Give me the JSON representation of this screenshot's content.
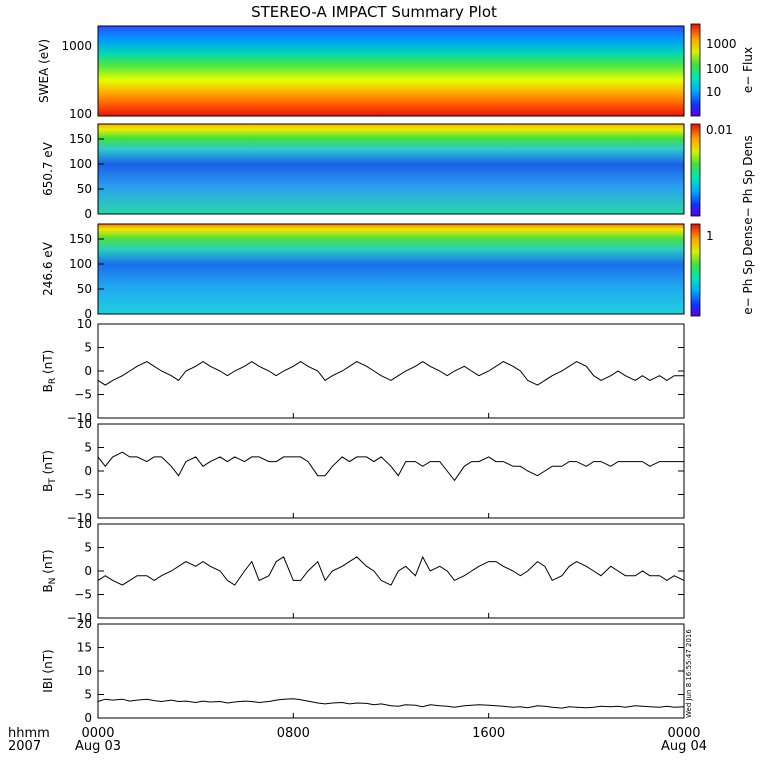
{
  "title": "STEREO-A IMPACT Summary Plot",
  "timestamp_label": "Wed Jun  8 16:55:47 2016",
  "time_axis": {
    "label_line1": "hhmm",
    "label_line2": "2007",
    "ticks": [
      {
        "hour": 0,
        "top": "0000",
        "bottom": "Aug 03"
      },
      {
        "hour": 8,
        "top": "0800",
        "bottom": ""
      },
      {
        "hour": 16,
        "top": "1600",
        "bottom": ""
      },
      {
        "hour": 24,
        "top": "0000",
        "bottom": "Aug 04"
      }
    ]
  },
  "chart_data": [
    {
      "type": "heatmap",
      "id": "swea",
      "ylabel": "SWEA (eV)",
      "yscale": "log",
      "ylim": [
        100,
        2000
      ],
      "yticks": [
        "100",
        "1000"
      ],
      "colorbar_label": "e− Flux",
      "colorbar_scale": "log",
      "colorbar_ticks": [
        "10",
        "100",
        "1000"
      ],
      "description_values": "energy-flux spectrogram: high flux (red) at low energy ~100-200 eV, decreasing to blue near 2000 eV, nearly constant over time"
    },
    {
      "type": "heatmap",
      "id": "pad_650",
      "ylabel": "650.7 eV",
      "ylim": [
        0,
        180
      ],
      "yticks": [
        "0",
        "50",
        "100",
        "150"
      ],
      "colorbar_label": "e− Ph Sp Dens",
      "colorbar_ticks": [
        "0.01"
      ],
      "description_values": "pitch-angle distribution: strahl (yellow/red) near 180 deg, depletion (blue) near 90-120 deg during 0000-0900"
    },
    {
      "type": "heatmap",
      "id": "pad_246",
      "ylabel": "246.6 eV",
      "ylim": [
        0,
        180
      ],
      "yticks": [
        "0",
        "50",
        "100",
        "150"
      ],
      "colorbar_label": "e− Ph Sp Dens",
      "colorbar_ticks": [
        "1"
      ],
      "description_values": "pitch-angle distribution: strahl near 180 deg, depletion near 90 deg during 0000-0900 and ~2000-2100"
    },
    {
      "type": "line",
      "id": "br",
      "ylabel": "B",
      "ylabel_sub": "R",
      "ylabel_unit": "(nT)",
      "ylim": [
        -10,
        10
      ],
      "yticks": [
        "−10",
        "−5",
        "0",
        "5",
        "10"
      ],
      "x_hours": [
        0,
        0.3,
        0.6,
        1,
        1.3,
        1.6,
        2,
        2.3,
        2.6,
        3,
        3.3,
        3.6,
        4,
        4.3,
        4.6,
        5,
        5.3,
        5.6,
        6,
        6.3,
        6.6,
        7,
        7.3,
        7.6,
        8,
        8.3,
        8.6,
        9,
        9.3,
        9.6,
        10,
        10.3,
        10.6,
        11,
        11.3,
        11.6,
        12,
        12.3,
        12.6,
        13,
        13.3,
        13.6,
        14,
        14.3,
        14.6,
        15,
        15.3,
        15.6,
        16,
        16.3,
        16.6,
        17,
        17.3,
        17.6,
        18,
        18.3,
        18.6,
        19,
        19.3,
        19.6,
        20,
        20.3,
        20.6,
        21,
        21.3,
        21.6,
        22,
        22.3,
        22.6,
        23,
        23.3,
        23.6,
        24
      ],
      "y": [
        -2,
        -3,
        -2,
        -1,
        0,
        1,
        2,
        1,
        0,
        -1,
        -2,
        0,
        1,
        2,
        1,
        0,
        -1,
        0,
        1,
        2,
        1,
        0,
        -1,
        0,
        1,
        2,
        1,
        0,
        -2,
        -1,
        0,
        1,
        2,
        1,
        0,
        -1,
        -2,
        -1,
        0,
        1,
        2,
        1,
        0,
        -1,
        0,
        1,
        0,
        -1,
        0,
        1,
        2,
        1,
        0,
        -2,
        -3,
        -2,
        -1,
        0,
        1,
        2,
        1,
        -1,
        -2,
        -1,
        0,
        -1,
        -2,
        -1,
        -2,
        -1,
        -2,
        -1,
        -1
      ]
    },
    {
      "type": "line",
      "id": "bt",
      "ylabel": "B",
      "ylabel_sub": "T",
      "ylabel_unit": "(nT)",
      "ylim": [
        -10,
        10
      ],
      "yticks": [
        "−10",
        "−5",
        "0",
        "5",
        "10"
      ],
      "x_hours": [
        0,
        0.3,
        0.6,
        1,
        1.3,
        1.6,
        2,
        2.3,
        2.6,
        3,
        3.3,
        3.6,
        4,
        4.3,
        4.6,
        5,
        5.3,
        5.6,
        6,
        6.3,
        6.6,
        7,
        7.3,
        7.6,
        8,
        8.3,
        8.6,
        9,
        9.3,
        9.6,
        10,
        10.3,
        10.6,
        11,
        11.3,
        11.6,
        12,
        12.3,
        12.6,
        13,
        13.3,
        13.6,
        14,
        14.3,
        14.6,
        15,
        15.3,
        15.6,
        16,
        16.3,
        16.6,
        17,
        17.3,
        17.6,
        18,
        18.3,
        18.6,
        19,
        19.3,
        19.6,
        20,
        20.3,
        20.6,
        21,
        21.3,
        21.6,
        22,
        22.3,
        22.6,
        23,
        23.3,
        23.6,
        24
      ],
      "y": [
        3,
        1,
        3,
        4,
        3,
        3,
        2,
        3,
        3,
        1,
        -1,
        2,
        3,
        1,
        2,
        3,
        2,
        3,
        2,
        3,
        3,
        2,
        2,
        3,
        3,
        3,
        2,
        -1,
        -1,
        1,
        3,
        2,
        3,
        3,
        2,
        3,
        1,
        -1,
        2,
        2,
        1,
        2,
        2,
        0,
        -2,
        1,
        2,
        2,
        3,
        2,
        2,
        1,
        1,
        0,
        -1,
        0,
        1,
        1,
        2,
        2,
        1,
        2,
        2,
        1,
        2,
        2,
        2,
        2,
        1,
        2,
        2,
        2,
        2
      ]
    },
    {
      "type": "line",
      "id": "bn",
      "ylabel": "B",
      "ylabel_sub": "N",
      "ylabel_unit": "(nT)",
      "ylim": [
        -10,
        10
      ],
      "yticks": [
        "−10",
        "−5",
        "0",
        "5",
        "10"
      ],
      "x_hours": [
        0,
        0.3,
        0.6,
        1,
        1.3,
        1.6,
        2,
        2.3,
        2.6,
        3,
        3.3,
        3.6,
        4,
        4.3,
        4.6,
        5,
        5.3,
        5.6,
        6,
        6.3,
        6.6,
        7,
        7.3,
        7.6,
        8,
        8.3,
        8.6,
        9,
        9.3,
        9.6,
        10,
        10.3,
        10.6,
        11,
        11.3,
        11.6,
        12,
        12.3,
        12.6,
        13,
        13.3,
        13.6,
        14,
        14.3,
        14.6,
        15,
        15.3,
        15.6,
        16,
        16.3,
        16.6,
        17,
        17.3,
        17.6,
        18,
        18.3,
        18.6,
        19,
        19.3,
        19.6,
        20,
        20.3,
        20.6,
        21,
        21.3,
        21.6,
        22,
        22.3,
        22.6,
        23,
        23.3,
        23.6,
        24
      ],
      "y": [
        -2,
        -1,
        -2,
        -3,
        -2,
        -1,
        -1,
        -2,
        -1,
        0,
        1,
        2,
        1,
        2,
        1,
        0,
        -2,
        -3,
        0,
        2,
        -2,
        -1,
        2,
        3,
        -2,
        -2,
        0,
        2,
        -2,
        0,
        1,
        2,
        3,
        1,
        0,
        -2,
        -3,
        0,
        1,
        -1,
        3,
        0,
        1,
        0,
        -2,
        -1,
        0,
        1,
        2,
        2,
        1,
        0,
        -1,
        0,
        2,
        1,
        -2,
        -1,
        1,
        2,
        1,
        0,
        -1,
        1,
        0,
        -1,
        -1,
        0,
        -1,
        -1,
        -2,
        -1,
        -2
      ]
    },
    {
      "type": "line",
      "id": "bmag",
      "ylabel": "IBI",
      "ylabel_unit": "(nT)",
      "ylim": [
        0,
        20
      ],
      "yticks": [
        "0",
        "5",
        "10",
        "15",
        "20"
      ],
      "x_hours": [
        0,
        0.3,
        0.6,
        1,
        1.3,
        1.6,
        2,
        2.3,
        2.6,
        3,
        3.3,
        3.6,
        4,
        4.3,
        4.6,
        5,
        5.3,
        5.6,
        6,
        6.3,
        6.6,
        7,
        7.3,
        7.6,
        8,
        8.3,
        8.6,
        9,
        9.3,
        9.6,
        10,
        10.3,
        10.6,
        11,
        11.3,
        11.6,
        12,
        12.3,
        12.6,
        13,
        13.3,
        13.6,
        14,
        14.3,
        14.6,
        15,
        15.3,
        15.6,
        16,
        16.3,
        16.6,
        17,
        17.3,
        17.6,
        18,
        18.3,
        18.6,
        19,
        19.3,
        19.6,
        20,
        20.3,
        20.6,
        21,
        21.3,
        21.6,
        22,
        22.3,
        22.6,
        23,
        23.3,
        23.6,
        24
      ],
      "y": [
        3.5,
        4,
        3.8,
        4,
        3.6,
        3.8,
        4,
        3.7,
        3.5,
        3.8,
        3.5,
        3.6,
        3.3,
        3.6,
        3.4,
        3.5,
        3.2,
        3.4,
        3.6,
        3.5,
        3.3,
        3.5,
        3.8,
        4,
        4.1,
        3.9,
        3.6,
        3.2,
        3,
        3.2,
        3.3,
        3,
        3.2,
        3.1,
        2.8,
        3,
        2.6,
        2.5,
        2.8,
        2.7,
        2.4,
        2.8,
        2.6,
        2.5,
        2.3,
        2.6,
        2.7,
        2.8,
        2.7,
        2.6,
        2.5,
        2.3,
        2.4,
        2.2,
        2.6,
        2.5,
        2.3,
        2.1,
        2.4,
        2.3,
        2.2,
        2.3,
        2.5,
        2.4,
        2.5,
        2.3,
        2.6,
        2.5,
        2.4,
        2.3,
        2.5,
        2.3,
        2.4
      ]
    }
  ]
}
